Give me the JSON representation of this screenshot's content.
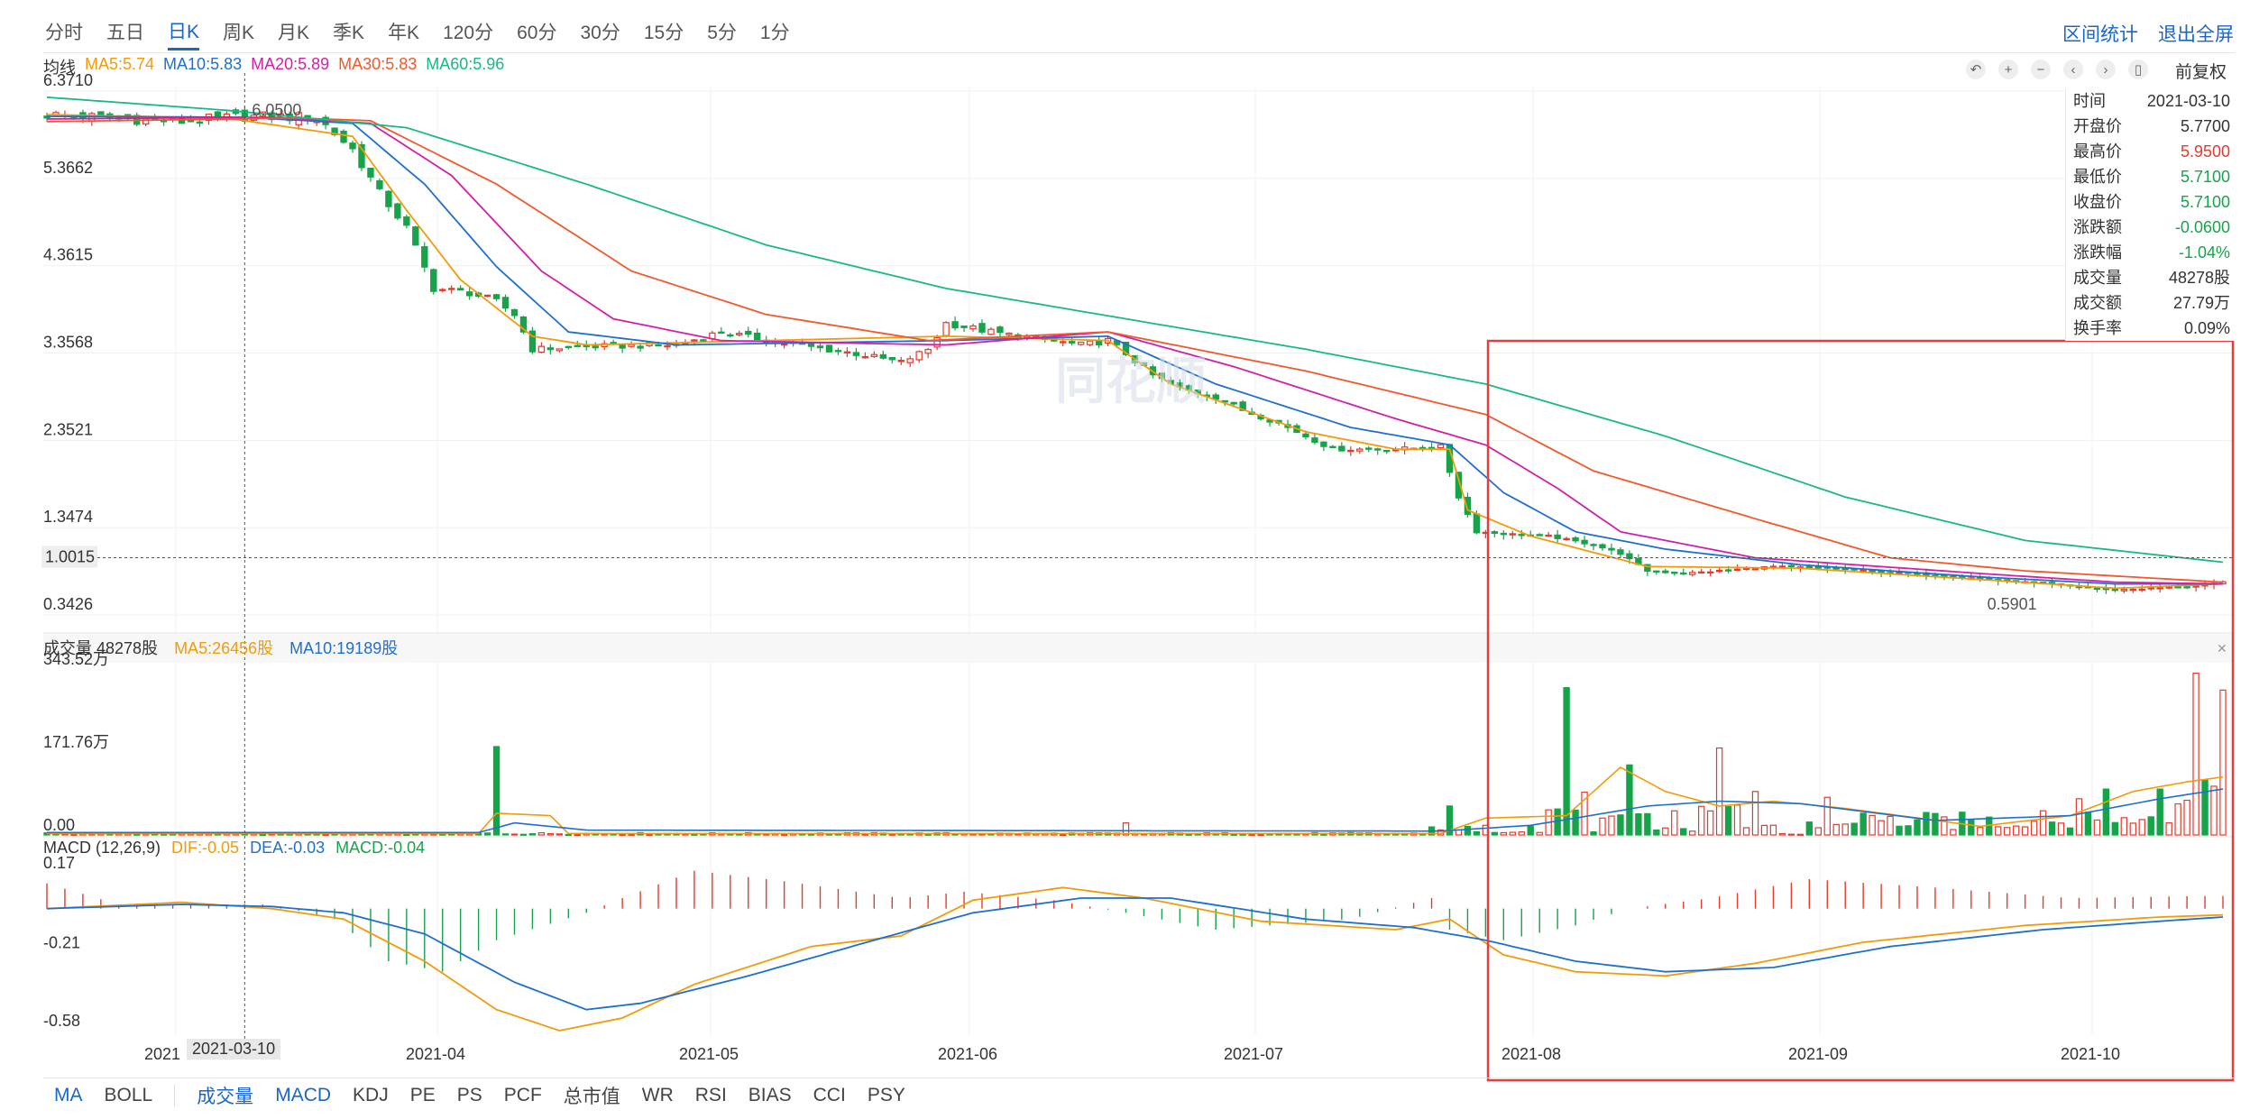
{
  "period_tabs": [
    "分时",
    "五日",
    "日K",
    "周K",
    "月K",
    "季K",
    "年K",
    "120分",
    "60分",
    "30分",
    "15分",
    "5分",
    "1分"
  ],
  "active_period": "日K",
  "top_right": {
    "interval_stats": "区间统计",
    "exit_fullscreen": "退出全屏"
  },
  "ma_legend": {
    "label": "均线",
    "items": [
      {
        "text": "MA5:5.74",
        "color": "#f29b0a"
      },
      {
        "text": "MA10:5.83",
        "color": "#1f6fd1"
      },
      {
        "text": "MA20:5.89",
        "color": "#d21fa8"
      },
      {
        "text": "MA30:5.83",
        "color": "#f2582c"
      },
      {
        "text": "MA60:5.96",
        "color": "#18b982"
      }
    ]
  },
  "adjust_label": "前复权",
  "tool_icons": [
    "undo-icon",
    "zoom-in-icon",
    "zoom-out-icon",
    "prev-icon",
    "next-icon",
    "capsule-icon"
  ],
  "info_panel": {
    "rows": [
      {
        "label": "时间",
        "value": "2021-03-10",
        "color": "#333333"
      },
      {
        "label": "开盘价",
        "value": "5.7700",
        "color": "#333333"
      },
      {
        "label": "最高价",
        "value": "5.9500",
        "color": "#e23b2e"
      },
      {
        "label": "最低价",
        "value": "5.7100",
        "color": "#17a34a"
      },
      {
        "label": "收盘价",
        "value": "5.7100",
        "color": "#17a34a"
      },
      {
        "label": "涨跌额",
        "value": "-0.0600",
        "color": "#17a34a"
      },
      {
        "label": "涨跌幅",
        "value": "-1.04%",
        "color": "#17a34a"
      },
      {
        "label": "成交量",
        "value": "48278股",
        "color": "#333333"
      },
      {
        "label": "成交额",
        "value": "27.79万",
        "color": "#333333"
      },
      {
        "label": "换手率",
        "value": "0.09%",
        "color": "#333333"
      }
    ]
  },
  "vol_legend": {
    "label": "成交量 48278股",
    "ma5": {
      "text": "MA5:26456股",
      "color": "#f29b0a"
    },
    "ma10": {
      "text": "MA10:19189股",
      "color": "#1f6fd1"
    }
  },
  "macd_legend": {
    "label": "MACD (12,26,9)",
    "dif": {
      "text": "DIF:-0.05",
      "color": "#f29b0a"
    },
    "dea": {
      "text": "DEA:-0.03",
      "color": "#1f6fd1"
    },
    "macd": {
      "text": "MACD:-0.04",
      "color": "#17a34a"
    }
  },
  "bottom_tabs_left": [
    "MA",
    "BOLL"
  ],
  "bottom_tabs_right": [
    "成交量",
    "MACD",
    "KDJ",
    "PE",
    "PS",
    "PCF",
    "总市值",
    "WR",
    "RSI",
    "BIAS",
    "CCI",
    "PSY"
  ],
  "active_bottom_tabs": [
    "MA",
    "成交量",
    "MACD"
  ],
  "cursor_date": "2021-03-10",
  "crosshair_price_label": "1.0015",
  "watermark": "同花顺",
  "colors": {
    "up": "#e23b2e",
    "down": "#17a34a",
    "grid": "#eeeeee"
  },
  "chart_data": [
    {
      "type": "candlestick",
      "y_ticks": [
        "6.3710",
        "5.3662",
        "4.3615",
        "3.3568",
        "2.3521",
        "1.3474",
        "0.3426"
      ],
      "ylim": [
        0.3426,
        6.371
      ],
      "x_tick_labels": [
        "2021",
        "2021-04",
        "2021-05",
        "2021-06",
        "2021-07",
        "2021-08",
        "2021-09",
        "2021-10"
      ],
      "annotations": [
        {
          "text": "6.0500"
        },
        {
          "text": "0.5901"
        }
      ],
      "close_anchors": [
        [
          0,
          6.1
        ],
        [
          15,
          6.02
        ],
        [
          22,
          6.08
        ],
        [
          30,
          6.07
        ],
        [
          34,
          5.7
        ],
        [
          37,
          5.2
        ],
        [
          40,
          4.8
        ],
        [
          43,
          4.1
        ],
        [
          47,
          4.05
        ],
        [
          50,
          3.95
        ],
        [
          52,
          3.8
        ],
        [
          54,
          3.4
        ],
        [
          60,
          3.43
        ],
        [
          70,
          3.45
        ],
        [
          75,
          3.6
        ],
        [
          80,
          3.5
        ],
        [
          90,
          3.35
        ],
        [
          95,
          3.25
        ],
        [
          98,
          3.4
        ],
        [
          100,
          3.7
        ],
        [
          105,
          3.6
        ],
        [
          108,
          3.55
        ],
        [
          115,
          3.45
        ],
        [
          118,
          3.5
        ],
        [
          120,
          3.35
        ],
        [
          123,
          3.1
        ],
        [
          126,
          2.95
        ],
        [
          130,
          2.85
        ],
        [
          133,
          2.7
        ],
        [
          137,
          2.55
        ],
        [
          140,
          2.4
        ],
        [
          143,
          2.25
        ],
        [
          150,
          2.25
        ],
        [
          155,
          2.28
        ],
        [
          157,
          1.7
        ],
        [
          159,
          1.3
        ],
        [
          163,
          1.27
        ],
        [
          167,
          1.25
        ],
        [
          172,
          1.15
        ],
        [
          175,
          1.05
        ],
        [
          178,
          0.85
        ],
        [
          182,
          0.82
        ],
        [
          186,
          0.85
        ],
        [
          192,
          0.9
        ],
        [
          198,
          0.88
        ],
        [
          210,
          0.8
        ],
        [
          220,
          0.72
        ],
        [
          230,
          0.63
        ],
        [
          240,
          0.68
        ],
        [
          242,
          0.72
        ]
      ],
      "ma_series": [
        {
          "name": "MA5",
          "values": [
            [
              0,
              6.1
            ],
            [
              20,
              6.06
            ],
            [
              34,
              5.85
            ],
            [
              40,
              5.0
            ],
            [
              46,
              4.2
            ],
            [
              54,
              3.55
            ],
            [
              60,
              3.45
            ],
            [
              100,
              3.55
            ],
            [
              118,
              3.5
            ],
            [
              125,
              3.0
            ],
            [
              140,
              2.45
            ],
            [
              150,
              2.25
            ],
            [
              156,
              2.25
            ],
            [
              158,
              1.55
            ],
            [
              165,
              1.25
            ],
            [
              178,
              0.9
            ],
            [
              195,
              0.88
            ],
            [
              215,
              0.75
            ],
            [
              230,
              0.65
            ],
            [
              242,
              0.7
            ]
          ]
        },
        {
          "name": "MA10",
          "values": [
            [
              0,
              6.08
            ],
            [
              22,
              6.07
            ],
            [
              34,
              6.0
            ],
            [
              42,
              5.3
            ],
            [
              50,
              4.35
            ],
            [
              58,
              3.6
            ],
            [
              70,
              3.45
            ],
            [
              100,
              3.5
            ],
            [
              118,
              3.55
            ],
            [
              130,
              3.0
            ],
            [
              145,
              2.5
            ],
            [
              156,
              2.3
            ],
            [
              162,
              1.75
            ],
            [
              170,
              1.3
            ],
            [
              180,
              1.1
            ],
            [
              195,
              0.92
            ],
            [
              215,
              0.78
            ],
            [
              230,
              0.7
            ],
            [
              242,
              0.7
            ]
          ]
        },
        {
          "name": "MA20",
          "values": [
            [
              0,
              6.05
            ],
            [
              25,
              6.07
            ],
            [
              36,
              6.0
            ],
            [
              45,
              5.4
            ],
            [
              55,
              4.3
            ],
            [
              63,
              3.75
            ],
            [
              75,
              3.5
            ],
            [
              100,
              3.45
            ],
            [
              118,
              3.6
            ],
            [
              132,
              3.2
            ],
            [
              150,
              2.6
            ],
            [
              160,
              2.3
            ],
            [
              168,
              1.8
            ],
            [
              175,
              1.3
            ],
            [
              190,
              1.0
            ],
            [
              215,
              0.82
            ],
            [
              230,
              0.72
            ],
            [
              242,
              0.7
            ]
          ]
        },
        {
          "name": "MA30",
          "values": [
            [
              0,
              6.02
            ],
            [
              28,
              6.06
            ],
            [
              36,
              6.03
            ],
            [
              50,
              5.3
            ],
            [
              65,
              4.3
            ],
            [
              80,
              3.8
            ],
            [
              98,
              3.5
            ],
            [
              118,
              3.6
            ],
            [
              140,
              3.15
            ],
            [
              160,
              2.65
            ],
            [
              172,
              2.0
            ],
            [
              190,
              1.45
            ],
            [
              205,
              1.0
            ],
            [
              220,
              0.85
            ],
            [
              242,
              0.72
            ]
          ]
        },
        {
          "name": "MA60",
          "values": [
            [
              0,
              6.3
            ],
            [
              20,
              6.15
            ],
            [
              40,
              5.95
            ],
            [
              60,
              5.3
            ],
            [
              80,
              4.6
            ],
            [
              100,
              4.1
            ],
            [
              120,
              3.75
            ],
            [
              140,
              3.4
            ],
            [
              160,
              3.0
            ],
            [
              180,
              2.4
            ],
            [
              200,
              1.7
            ],
            [
              220,
              1.2
            ],
            [
              242,
              0.95
            ]
          ]
        }
      ]
    },
    {
      "type": "bar",
      "name": "volume",
      "y_ticks": [
        "343.52万",
        "171.76万",
        "0.00"
      ],
      "ylim": [
        0,
        343.52
      ],
      "unit": "万",
      "spikes": [
        [
          50,
          183
        ],
        [
          70,
          3
        ],
        [
          95,
          3
        ],
        [
          120,
          25
        ],
        [
          156,
          60
        ],
        [
          160,
          20
        ],
        [
          165,
          18
        ],
        [
          169,
          305
        ],
        [
          173,
          35
        ],
        [
          176,
          145
        ],
        [
          181,
          50
        ],
        [
          186,
          180
        ],
        [
          190,
          90
        ],
        [
          198,
          78
        ],
        [
          202,
          45
        ],
        [
          215,
          12
        ],
        [
          222,
          50
        ],
        [
          226,
          75
        ],
        [
          229,
          95
        ],
        [
          235,
          95
        ],
        [
          239,
          335
        ],
        [
          242,
          300
        ]
      ],
      "ma5": [
        [
          0,
          3
        ],
        [
          48,
          3
        ],
        [
          50,
          45
        ],
        [
          56,
          40
        ],
        [
          58,
          3
        ],
        [
          155,
          3
        ],
        [
          160,
          35
        ],
        [
          169,
          40
        ],
        [
          175,
          140
        ],
        [
          180,
          90
        ],
        [
          186,
          60
        ],
        [
          192,
          70
        ],
        [
          200,
          55
        ],
        [
          215,
          18
        ],
        [
          225,
          40
        ],
        [
          232,
          90
        ],
        [
          238,
          110
        ],
        [
          242,
          120
        ]
      ],
      "ma10": [
        [
          0,
          5
        ],
        [
          48,
          5
        ],
        [
          52,
          25
        ],
        [
          60,
          10
        ],
        [
          155,
          8
        ],
        [
          165,
          20
        ],
        [
          170,
          35
        ],
        [
          178,
          60
        ],
        [
          186,
          70
        ],
        [
          195,
          65
        ],
        [
          210,
          30
        ],
        [
          225,
          40
        ],
        [
          235,
          75
        ],
        [
          242,
          95
        ]
      ]
    },
    {
      "type": "macd",
      "y_ticks": [
        "0.17",
        "-0.21",
        "-0.58"
      ],
      "ylim": [
        -0.58,
        0.17
      ],
      "dif": [
        [
          0,
          0.0
        ],
        [
          15,
          0.03
        ],
        [
          25,
          0.0
        ],
        [
          33,
          -0.05
        ],
        [
          42,
          -0.25
        ],
        [
          50,
          -0.48
        ],
        [
          57,
          -0.58
        ],
        [
          64,
          -0.52
        ],
        [
          72,
          -0.36
        ],
        [
          85,
          -0.18
        ],
        [
          95,
          -0.13
        ],
        [
          103,
          0.04
        ],
        [
          113,
          0.1
        ],
        [
          122,
          0.05
        ],
        [
          135,
          -0.06
        ],
        [
          150,
          -0.1
        ],
        [
          156,
          -0.05
        ],
        [
          162,
          -0.22
        ],
        [
          170,
          -0.3
        ],
        [
          180,
          -0.32
        ],
        [
          190,
          -0.26
        ],
        [
          202,
          -0.16
        ],
        [
          220,
          -0.08
        ],
        [
          235,
          -0.04
        ],
        [
          242,
          -0.03
        ]
      ],
      "dea": [
        [
          0,
          0.0
        ],
        [
          15,
          0.02
        ],
        [
          25,
          0.01
        ],
        [
          33,
          -0.02
        ],
        [
          42,
          -0.12
        ],
        [
          52,
          -0.35
        ],
        [
          60,
          -0.48
        ],
        [
          66,
          -0.45
        ],
        [
          78,
          -0.32
        ],
        [
          92,
          -0.15
        ],
        [
          103,
          -0.02
        ],
        [
          115,
          0.05
        ],
        [
          125,
          0.05
        ],
        [
          140,
          -0.05
        ],
        [
          152,
          -0.09
        ],
        [
          160,
          -0.15
        ],
        [
          170,
          -0.25
        ],
        [
          180,
          -0.3
        ],
        [
          192,
          -0.28
        ],
        [
          205,
          -0.18
        ],
        [
          222,
          -0.1
        ],
        [
          235,
          -0.06
        ],
        [
          242,
          -0.04
        ]
      ],
      "hist_anchors": [
        [
          0,
          0.12
        ],
        [
          8,
          0.02
        ],
        [
          25,
          0.02
        ],
        [
          32,
          -0.05
        ],
        [
          38,
          -0.25
        ],
        [
          44,
          -0.3
        ],
        [
          50,
          -0.15
        ],
        [
          60,
          -0.02
        ],
        [
          64,
          0.05
        ],
        [
          72,
          0.18
        ],
        [
          82,
          0.13
        ],
        [
          95,
          0.05
        ],
        [
          102,
          0.08
        ],
        [
          112,
          0.04
        ],
        [
          120,
          -0.02
        ],
        [
          130,
          -0.1
        ],
        [
          145,
          -0.05
        ],
        [
          154,
          0.05
        ],
        [
          156,
          -0.1
        ],
        [
          162,
          -0.15
        ],
        [
          170,
          -0.08
        ],
        [
          176,
          0.0
        ],
        [
          185,
          0.05
        ],
        [
          196,
          0.14
        ],
        [
          210,
          0.1
        ],
        [
          225,
          0.05
        ],
        [
          240,
          0.06
        ],
        [
          242,
          0.06
        ]
      ]
    }
  ]
}
